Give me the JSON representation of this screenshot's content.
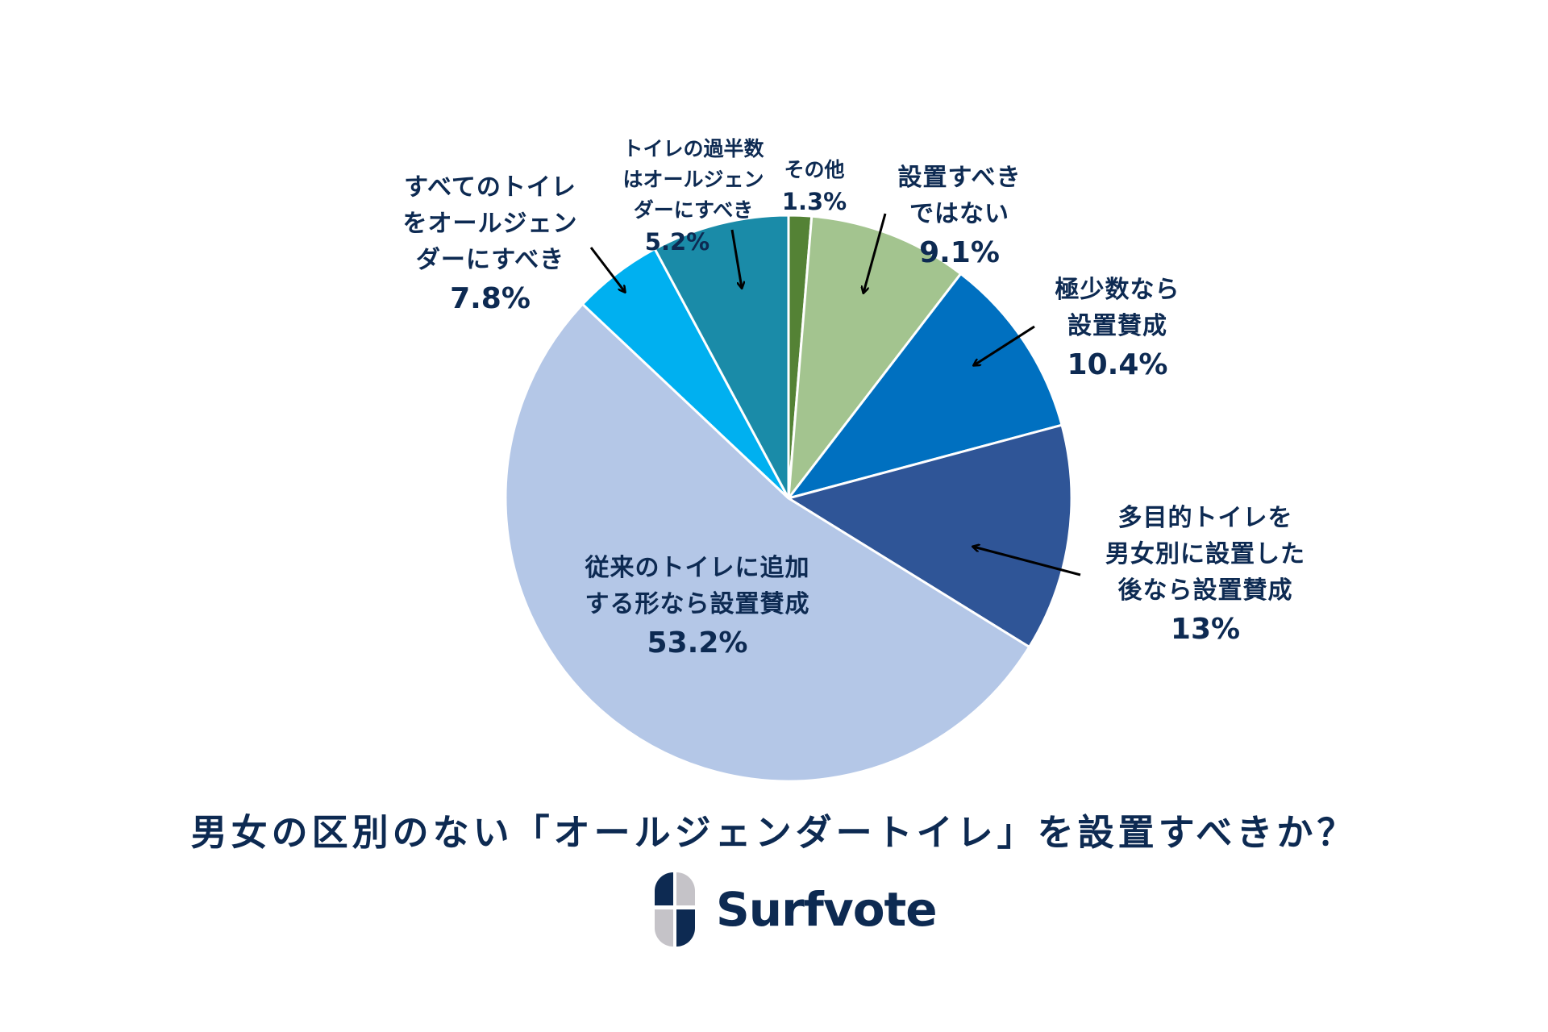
{
  "chart_data": {
    "type": "pie",
    "title": "男女の区別のない「オールジェンダートイレ」を設置すべきか？",
    "start_angle_deg": 0,
    "direction": "clockwise",
    "slices": [
      {
        "label": "その他",
        "value": 1.3,
        "display": "1.3%",
        "color": "#548235"
      },
      {
        "label": "設置すべきではない",
        "value": 9.1,
        "display": "9.1%",
        "color": "#a3c48f"
      },
      {
        "label": "極少数なら設置賛成",
        "value": 10.4,
        "display": "10.4%",
        "color": "#0070c0"
      },
      {
        "label": "多目的トイレを男女別に設置した後なら設置賛成",
        "value": 13,
        "display": "13%",
        "color": "#2f5597"
      },
      {
        "label": "従来のトイレに追加する形なら設置賛成",
        "value": 53.2,
        "display": "53.2%",
        "color": "#b4c7e7"
      },
      {
        "label": "すべてのトイレをオールジェンダーにすべき",
        "value": 7.8,
        "display": "7.8%",
        "color": "#00b0f0"
      },
      {
        "label": "トイレの過半数はオールジェンダーにすべき",
        "value": 5.2,
        "display": "5.2%",
        "color": "#1a8ba8"
      }
    ],
    "legend": "none (callout labels)",
    "units": "%"
  },
  "labels": {
    "other": {
      "lines": [
        "その他"
      ],
      "pct": "1.3%"
    },
    "should_not": {
      "lines": [
        "設置すべき",
        "ではない"
      ],
      "pct": "9.1%"
    },
    "few_ok": {
      "lines": [
        "極少数なら",
        "設置賛成"
      ],
      "pct": "10.4%"
    },
    "multipurpose": {
      "lines": [
        "多目的トイレを",
        "男女別に設置した",
        "後なら設置賛成"
      ],
      "pct": "13%"
    },
    "additional": {
      "lines": [
        "従来のトイレに追加",
        "する形なら設置賛成"
      ],
      "pct": "53.2%"
    },
    "all_toilets": {
      "lines": [
        "すべてのトイレ",
        "をオールジェン",
        "ダーにすべき"
      ],
      "pct": "7.8%"
    },
    "majority": {
      "lines": [
        "トイレの過半数",
        "はオールジェン",
        "ダーにすべき"
      ],
      "pct": "5.2%"
    }
  },
  "title": "男女の区別のない「オールジェンダートイレ」を設置すべきか？",
  "brand": {
    "name": "Surfvote",
    "navy": "#0d2a52",
    "gray": "#c5c3c8"
  }
}
